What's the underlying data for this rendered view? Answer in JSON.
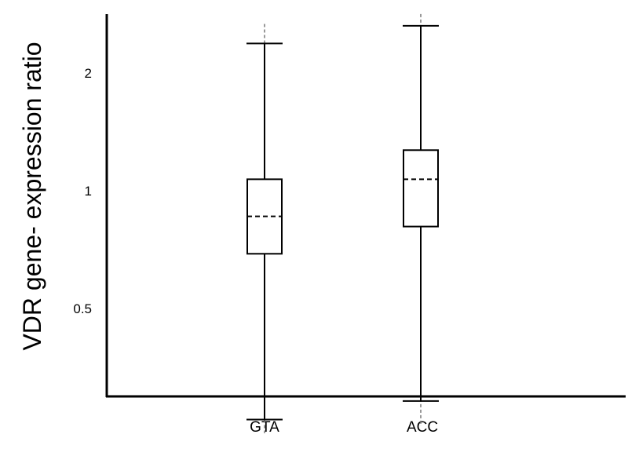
{
  "chart_data": {
    "type": "box",
    "ylabel": "VDR gene- expression ratio",
    "xlabel": "",
    "yscale": "log",
    "yticks": [
      {
        "value": 0.5,
        "label": "0.5"
      },
      {
        "value": 1,
        "label": "1"
      },
      {
        "value": 2,
        "label": "2"
      }
    ],
    "categories": [
      "GTA",
      "ACC"
    ],
    "boxes": [
      {
        "category": "GTA",
        "whisker_low": 0.26,
        "q1": 0.69,
        "median": 0.86,
        "q3": 1.07,
        "whisker_high": 2.38,
        "range_low": 0.24,
        "range_high": 2.67
      },
      {
        "category": "ACC",
        "whisker_low": 0.29,
        "q1": 0.81,
        "median": 1.07,
        "q3": 1.27,
        "whisker_high": 2.64,
        "range_low": 0.25,
        "range_high": 2.83
      }
    ],
    "colors": {
      "axis": "#000000",
      "box": "#000000",
      "median": "#000000",
      "range_line": "#777777",
      "background": "#ffffff"
    }
  }
}
